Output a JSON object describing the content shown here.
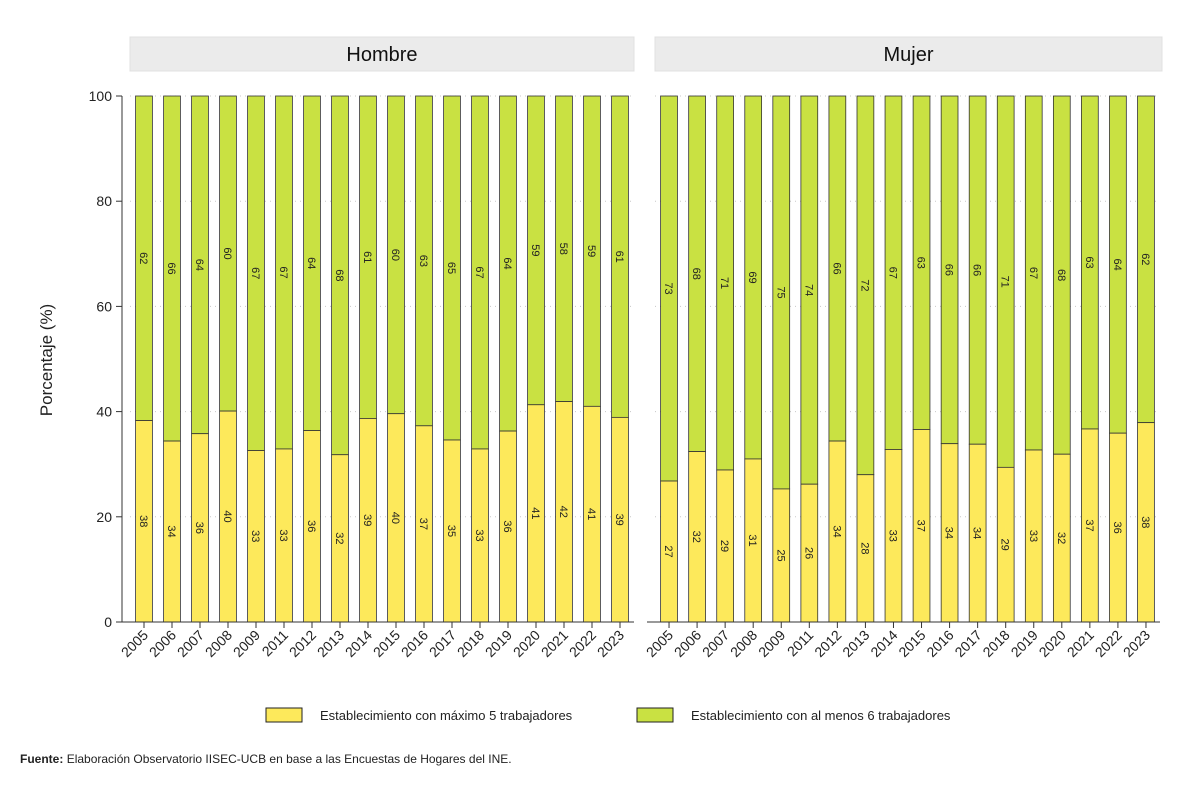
{
  "chart_data": {
    "type": "bar",
    "stacked": true,
    "ylabel": "Porcentaje (%)",
    "ylim": [
      0,
      100
    ],
    "yticks": [
      0,
      20,
      40,
      60,
      80,
      100
    ],
    "grid": "horizontal-dotted",
    "legend_position": "bottom",
    "colors": {
      "small": "#FDE95B",
      "large": "#C9E142"
    },
    "legend": [
      "Establecimiento con máximo 5 trabajadores",
      "Establecimiento con al menos 6 trabajadores"
    ],
    "panels": [
      {
        "title": "Hombre",
        "categories": [
          "2005",
          "2006",
          "2007",
          "2008",
          "2009",
          "2011",
          "2012",
          "2013",
          "2014",
          "2015",
          "2016",
          "2017",
          "2018",
          "2019",
          "2020",
          "2021",
          "2022",
          "2023"
        ],
        "series": [
          {
            "name": "Establecimiento con máximo 5 trabajadores",
            "values": [
              38,
              34,
              36,
              40,
              33,
              33,
              36,
              32,
              39,
              40,
              37,
              35,
              33,
              36,
              41,
              42,
              41,
              39
            ],
            "heights": [
              38.3,
              34.4,
              35.8,
              40.1,
              32.6,
              32.9,
              36.4,
              31.8,
              38.7,
              39.6,
              37.3,
              34.6,
              32.9,
              36.3,
              41.3,
              41.9,
              41.0,
              38.9
            ]
          },
          {
            "name": "Establecimiento con al menos 6 trabajadores",
            "values": [
              62,
              66,
              64,
              60,
              67,
              67,
              64,
              68,
              61,
              60,
              63,
              65,
              67,
              64,
              59,
              58,
              59,
              61
            ]
          }
        ]
      },
      {
        "title": "Mujer",
        "categories": [
          "2005",
          "2006",
          "2007",
          "2008",
          "2009",
          "2011",
          "2012",
          "2013",
          "2014",
          "2015",
          "2016",
          "2017",
          "2018",
          "2019",
          "2020",
          "2021",
          "2022",
          "2023"
        ],
        "series": [
          {
            "name": "Establecimiento con máximo 5 trabajadores",
            "values": [
              27,
              32,
              29,
              31,
              25,
              26,
              34,
              28,
              33,
              37,
              34,
              34,
              29,
              33,
              32,
              37,
              36,
              38
            ],
            "heights": [
              26.8,
              32.4,
              28.9,
              31.0,
              25.3,
              26.2,
              34.4,
              28.0,
              32.8,
              36.6,
              33.9,
              33.8,
              29.4,
              32.7,
              31.9,
              36.7,
              35.9,
              37.9
            ]
          },
          {
            "name": "Establecimiento con al menos 6 trabajadores",
            "values": [
              73,
              68,
              71,
              69,
              75,
              74,
              66,
              72,
              67,
              63,
              66,
              66,
              71,
              67,
              68,
              63,
              64,
              62
            ]
          }
        ]
      }
    ]
  },
  "source": {
    "label": "Fuente:",
    "text": "Elaboración Observatorio IISEC-UCB en base a las Encuestas de Hogares del INE."
  }
}
